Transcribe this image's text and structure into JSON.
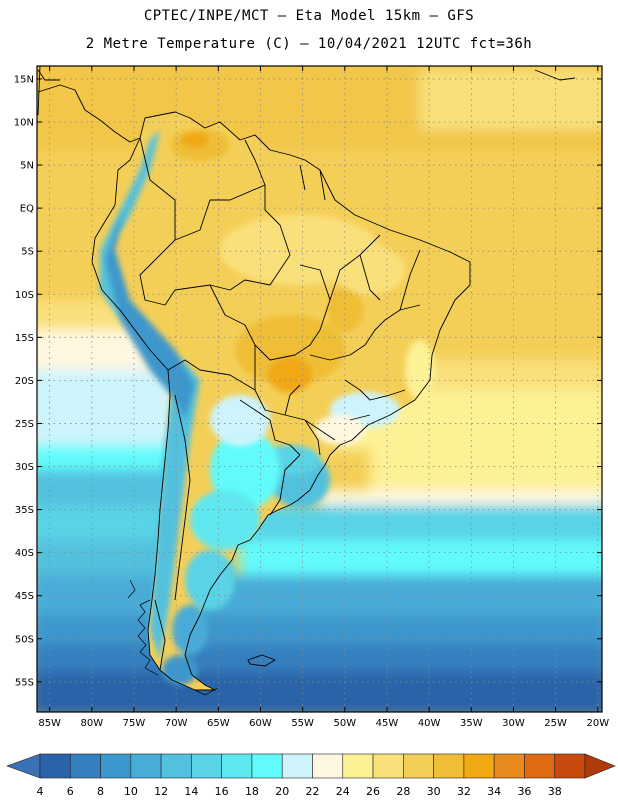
{
  "title": {
    "line1": "CPTEC/INPE/MCT –  Eta Model 15km – GFS",
    "line2": "2 Metre Temperature (C) – 10/04/2021 12UTC fct=36h"
  },
  "map": {
    "lat_range": [
      -58.5,
      16.5
    ],
    "lon_range": [
      -86.5,
      -19.5
    ],
    "lat_ticks": [
      {
        "value": 15,
        "label": "15N"
      },
      {
        "value": 10,
        "label": "10N"
      },
      {
        "value": 5,
        "label": "5N"
      },
      {
        "value": 0,
        "label": "EQ"
      },
      {
        "value": -5,
        "label": "5S"
      },
      {
        "value": -10,
        "label": "10S"
      },
      {
        "value": -15,
        "label": "15S"
      },
      {
        "value": -20,
        "label": "20S"
      },
      {
        "value": -25,
        "label": "25S"
      },
      {
        "value": -30,
        "label": "30S"
      },
      {
        "value": -35,
        "label": "35S"
      },
      {
        "value": -40,
        "label": "40S"
      },
      {
        "value": -45,
        "label": "45S"
      },
      {
        "value": -50,
        "label": "50S"
      },
      {
        "value": -55,
        "label": "55S"
      }
    ],
    "lon_ticks": [
      {
        "value": -85,
        "label": "85W"
      },
      {
        "value": -80,
        "label": "80W"
      },
      {
        "value": -75,
        "label": "75W"
      },
      {
        "value": -70,
        "label": "70W"
      },
      {
        "value": -65,
        "label": "65W"
      },
      {
        "value": -60,
        "label": "60W"
      },
      {
        "value": -55,
        "label": "55W"
      },
      {
        "value": -50,
        "label": "50W"
      },
      {
        "value": -45,
        "label": "45W"
      },
      {
        "value": -40,
        "label": "40W"
      },
      {
        "value": -35,
        "label": "35W"
      },
      {
        "value": -30,
        "label": "30W"
      },
      {
        "value": -25,
        "label": "25W"
      },
      {
        "value": -20,
        "label": "20W"
      }
    ]
  },
  "colorbar": {
    "labels": [
      "4",
      "6",
      "8",
      "10",
      "12",
      "14",
      "16",
      "18",
      "20",
      "22",
      "24",
      "26",
      "28",
      "30",
      "32",
      "34",
      "36",
      "38"
    ],
    "colors": [
      "#2a63a8",
      "#347fbe",
      "#3c97cc",
      "#48acd8",
      "#52c1de",
      "#5ad3e6",
      "#5ee8ef",
      "#62fbfb",
      "#cdf4fc",
      "#fff7e1",
      "#fdf196",
      "#fae07a",
      "#f4cf58",
      "#efbe36",
      "#f0a814",
      "#e98a1e",
      "#e06a12",
      "#c94a0c"
    ],
    "low_arrow_color": "#3a72b5",
    "high_arrow_color": "#b03a0a"
  }
}
